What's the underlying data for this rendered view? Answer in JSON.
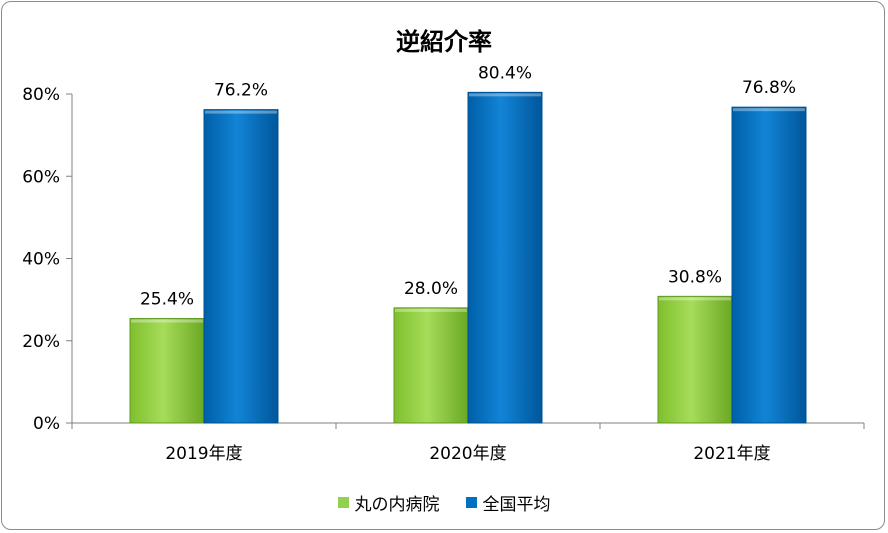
{
  "chart_data": {
    "type": "bar",
    "title": "逆紹介率",
    "categories": [
      "2019年度",
      "2020年度",
      "2021年度"
    ],
    "series": [
      {
        "name": "丸の内病院",
        "values": [
          25.4,
          28.0,
          30.8
        ],
        "labels": [
          "25.4%",
          "28.0%",
          "30.8%"
        ],
        "color": "#92d050"
      },
      {
        "name": "全国平均",
        "values": [
          76.2,
          80.4,
          76.8
        ],
        "labels": [
          "76.2%",
          "80.4%",
          "76.8%"
        ],
        "color": "#0070c0"
      }
    ],
    "ylim": [
      0,
      80
    ],
    "yticks": [
      0,
      20,
      40,
      60,
      80
    ],
    "ytick_labels": [
      "0%",
      "20%",
      "40%",
      "60%",
      "80%"
    ],
    "legend_position": "bottom",
    "grid": false
  }
}
